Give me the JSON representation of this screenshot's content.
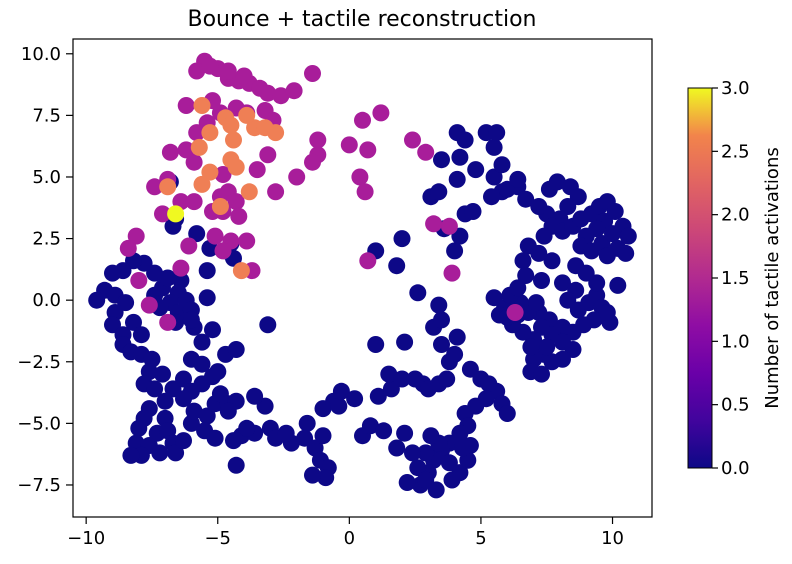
{
  "chart_data": {
    "type": "scatter",
    "title": "Bounce + tactile reconstruction",
    "xlim": [
      -10.5,
      11.5
    ],
    "ylim": [
      -8.8,
      10.6
    ],
    "xticks": [
      -10,
      -5,
      0,
      5,
      10
    ],
    "yticks": [
      -7.5,
      -5.0,
      -2.5,
      0.0,
      2.5,
      5.0,
      7.5,
      10.0
    ],
    "xtick_labels": [
      "−10",
      "−5",
      "0",
      "5",
      "10"
    ],
    "ytick_labels": [
      "−7.5",
      "−5.0",
      "−2.5",
      "0.0",
      "2.5",
      "5.0",
      "7.5",
      "10.0"
    ],
    "colorbar": {
      "label": "Number of tactile activations",
      "colormap": "plasma",
      "range": [
        0,
        3
      ],
      "ticks": [
        "0.0",
        "0.5",
        "1.0",
        "1.5",
        "2.0",
        "2.5",
        "3.0"
      ]
    },
    "points_value_3": [
      [
        -6.6,
        3.5
      ]
    ],
    "points_value_2": [
      [
        -6.9,
        4.6
      ],
      [
        -5.6,
        7.9
      ],
      [
        -5.7,
        6.2
      ],
      [
        -5.3,
        5.2
      ],
      [
        -5.6,
        4.7
      ],
      [
        -4.7,
        7.4
      ],
      [
        -4.4,
        6.5
      ],
      [
        -4.5,
        5.7
      ],
      [
        -4.3,
        5.4
      ],
      [
        -3.8,
        4.4
      ],
      [
        -3.6,
        7.0
      ],
      [
        -3.2,
        7.0
      ],
      [
        -2.8,
        6.8
      ],
      [
        -4.9,
        3.8
      ],
      [
        -4.1,
        1.2
      ],
      [
        -5.3,
        6.8
      ],
      [
        -3.9,
        7.5
      ],
      [
        -4.5,
        7.1
      ]
    ],
    "points_value_1": [
      [
        -5.5,
        9.7
      ],
      [
        -5.8,
        9.3
      ],
      [
        -5.0,
        9.4
      ],
      [
        -4.6,
        9.0
      ],
      [
        -4.2,
        8.9
      ],
      [
        -3.8,
        8.8
      ],
      [
        -3.4,
        8.6
      ],
      [
        -3.1,
        8.4
      ],
      [
        -2.6,
        8.3
      ],
      [
        -2.1,
        8.5
      ],
      [
        -1.4,
        9.2
      ],
      [
        -5.2,
        8.1
      ],
      [
        -4.9,
        7.6
      ],
      [
        -4.3,
        7.8
      ],
      [
        -3.9,
        7.6
      ],
      [
        -3.2,
        7.7
      ],
      [
        -2.9,
        7.3
      ],
      [
        -6.2,
        7.9
      ],
      [
        -5.4,
        7.2
      ],
      [
        -5.8,
        6.8
      ],
      [
        -6.8,
        6.0
      ],
      [
        -6.2,
        6.1
      ],
      [
        -5.9,
        5.6
      ],
      [
        -4.8,
        5.1
      ],
      [
        -4.6,
        4.4
      ],
      [
        -4.9,
        4.2
      ],
      [
        -4.3,
        4.0
      ],
      [
        -3.5,
        5.3
      ],
      [
        -3.1,
        5.9
      ],
      [
        -2.8,
        4.4
      ],
      [
        -2.0,
        5.0
      ],
      [
        -1.2,
        5.9
      ],
      [
        -1.4,
        5.6
      ],
      [
        -1.2,
        6.5
      ],
      [
        0.0,
        6.3
      ],
      [
        0.5,
        7.3
      ],
      [
        0.7,
        6.1
      ],
      [
        1.2,
        7.6
      ],
      [
        0.4,
        5.0
      ],
      [
        0.6,
        4.4
      ],
      [
        2.4,
        6.5
      ],
      [
        2.9,
        6.0
      ],
      [
        -6.9,
        4.9
      ],
      [
        -7.4,
        4.6
      ],
      [
        -6.4,
        4.0
      ],
      [
        -5.9,
        4.0
      ],
      [
        -7.1,
        3.5
      ],
      [
        -5.2,
        3.6
      ],
      [
        -4.8,
        3.6
      ],
      [
        -4.2,
        3.4
      ],
      [
        -5.1,
        2.6
      ],
      [
        -4.5,
        2.4
      ],
      [
        -4.8,
        2.0
      ],
      [
        -3.9,
        2.4
      ],
      [
        -8.1,
        2.6
      ],
      [
        -8.4,
        2.1
      ],
      [
        -6.1,
        2.2
      ],
      [
        -6.4,
        1.3
      ],
      [
        -8.0,
        0.8
      ],
      [
        -7.6,
        -0.2
      ],
      [
        -6.9,
        -0.9
      ],
      [
        -3.7,
        1.2
      ],
      [
        0.7,
        1.6
      ],
      [
        3.2,
        3.1
      ],
      [
        3.8,
        3.0
      ],
      [
        3.9,
        1.1
      ],
      [
        6.3,
        -0.5
      ],
      [
        -4.6,
        9.3
      ],
      [
        -5.3,
        9.5
      ],
      [
        -4.0,
        9.1
      ]
    ],
    "points_value_0": [
      [
        -6.8,
        4.8
      ],
      [
        -6.6,
        3.3
      ],
      [
        -6.7,
        3.0
      ],
      [
        -5.8,
        2.7
      ],
      [
        -5.3,
        2.1
      ],
      [
        -4.5,
        2.3
      ],
      [
        -4.7,
        2.0
      ],
      [
        -4.4,
        1.7
      ],
      [
        -5.4,
        1.2
      ],
      [
        -6.4,
        0.8
      ],
      [
        -6.5,
        0.3
      ],
      [
        -6.8,
        -0.1
      ],
      [
        -6.5,
        -0.5
      ],
      [
        -6.6,
        -0.9
      ],
      [
        -7.2,
        -0.3
      ],
      [
        -7.4,
        0.2
      ],
      [
        -7.1,
        0.5
      ],
      [
        -6.9,
        0.9
      ],
      [
        -7.4,
        1.1
      ],
      [
        -7.8,
        1.5
      ],
      [
        -8.2,
        1.6
      ],
      [
        -8.6,
        1.2
      ],
      [
        -9.0,
        1.1
      ],
      [
        -9.3,
        0.4
      ],
      [
        -9.6,
        0.0
      ],
      [
        -8.9,
        0.2
      ],
      [
        -8.5,
        -0.1
      ],
      [
        -8.9,
        -0.5
      ],
      [
        -9.0,
        -1.0
      ],
      [
        -8.6,
        -1.4
      ],
      [
        -8.2,
        -0.9
      ],
      [
        -7.9,
        -1.4
      ],
      [
        -8.6,
        -1.8
      ],
      [
        -8.3,
        -2.1
      ],
      [
        -7.9,
        -2.2
      ],
      [
        -7.5,
        -2.4
      ],
      [
        -7.6,
        -2.9
      ],
      [
        -7.8,
        -3.4
      ],
      [
        -7.4,
        -3.6
      ],
      [
        -7.1,
        -3.0
      ],
      [
        -6.7,
        -3.6
      ],
      [
        -6.3,
        -3.2
      ],
      [
        -6.0,
        -3.7
      ],
      [
        -6.3,
        -4.0
      ],
      [
        -7.0,
        -4.1
      ],
      [
        -7.6,
        -4.4
      ],
      [
        -7.8,
        -4.8
      ],
      [
        -8.0,
        -5.2
      ],
      [
        -8.1,
        -5.8
      ],
      [
        -7.6,
        -5.9
      ],
      [
        -7.3,
        -5.4
      ],
      [
        -7.0,
        -4.8
      ],
      [
        -6.9,
        -5.3
      ],
      [
        -6.7,
        -5.8
      ],
      [
        -6.6,
        -6.2
      ],
      [
        -7.2,
        -6.2
      ],
      [
        -7.9,
        -6.3
      ],
      [
        -8.3,
        -6.3
      ],
      [
        -6.3,
        -5.7
      ],
      [
        -6.0,
        -5.0
      ],
      [
        -5.9,
        -4.5
      ],
      [
        -5.4,
        -4.7
      ],
      [
        -5.1,
        -4.2
      ],
      [
        -5.6,
        -3.4
      ],
      [
        -5.2,
        -3.1
      ],
      [
        -4.9,
        -3.8
      ],
      [
        -4.6,
        -4.2
      ],
      [
        -4.3,
        -4.1
      ],
      [
        -4.6,
        -4.5
      ],
      [
        -5.5,
        -5.3
      ],
      [
        -5.1,
        -5.6
      ],
      [
        -4.4,
        -5.7
      ],
      [
        -4.1,
        -5.5
      ],
      [
        -4.3,
        -6.7
      ],
      [
        -3.6,
        -5.4
      ],
      [
        -3.0,
        -5.2
      ],
      [
        -2.8,
        -5.6
      ],
      [
        -2.2,
        -5.8
      ],
      [
        -1.6,
        -5.0
      ],
      [
        -1.7,
        -5.6
      ],
      [
        -1.3,
        -6.0
      ],
      [
        -1.1,
        -6.5
      ],
      [
        -0.8,
        -6.8
      ],
      [
        -0.9,
        -7.2
      ],
      [
        -1.4,
        -7.1
      ],
      [
        -1.0,
        -5.5
      ],
      [
        -1.0,
        -4.4
      ],
      [
        -0.6,
        -4.1
      ],
      [
        -0.4,
        -4.3
      ],
      [
        0.5,
        -5.5
      ],
      [
        0.8,
        -5.1
      ],
      [
        1.3,
        -5.3
      ],
      [
        1.1,
        -3.9
      ],
      [
        1.6,
        -3.6
      ],
      [
        1.5,
        -3.0
      ],
      [
        2.0,
        -3.2
      ],
      [
        2.5,
        -3.2
      ],
      [
        2.8,
        -3.4
      ],
      [
        3.0,
        -3.6
      ],
      [
        3.4,
        -3.4
      ],
      [
        3.7,
        -3.2
      ],
      [
        3.8,
        -2.5
      ],
      [
        4.0,
        -2.2
      ],
      [
        3.5,
        -1.8
      ],
      [
        4.1,
        -1.5
      ],
      [
        4.6,
        -2.8
      ],
      [
        5.0,
        -3.2
      ],
      [
        5.3,
        -3.4
      ],
      [
        5.6,
        -3.7
      ],
      [
        5.8,
        -4.2
      ],
      [
        6.0,
        -4.6
      ],
      [
        5.2,
        -4.0
      ],
      [
        4.8,
        -4.3
      ],
      [
        4.4,
        -4.6
      ],
      [
        4.5,
        -5.1
      ],
      [
        4.2,
        -5.4
      ],
      [
        3.8,
        -5.8
      ],
      [
        3.5,
        -6.1
      ],
      [
        3.2,
        -6.5
      ],
      [
        3.0,
        -7.0
      ],
      [
        2.7,
        -7.5
      ],
      [
        2.2,
        -7.4
      ],
      [
        2.6,
        -6.8
      ],
      [
        2.9,
        -6.2
      ],
      [
        3.4,
        -5.8
      ],
      [
        3.8,
        -6.6
      ],
      [
        4.2,
        -7.0
      ],
      [
        4.5,
        -6.5
      ],
      [
        4.6,
        -5.9
      ],
      [
        4.3,
        -6.0
      ],
      [
        3.9,
        -7.3
      ],
      [
        3.3,
        -7.7
      ],
      [
        2.9,
        -7.3
      ],
      [
        2.4,
        -6.2
      ],
      [
        3.1,
        -5.5
      ],
      [
        2.1,
        -5.4
      ],
      [
        1.8,
        -6.0
      ],
      [
        0.2,
        -4.0
      ],
      [
        -0.3,
        -3.7
      ],
      [
        -2.4,
        -5.4
      ],
      [
        -3.2,
        -4.3
      ],
      [
        -3.6,
        -3.9
      ],
      [
        -3.9,
        -5.2
      ],
      [
        -5.0,
        -2.9
      ],
      [
        -5.6,
        -2.6
      ],
      [
        -6.0,
        -2.4
      ],
      [
        -5.6,
        -1.7
      ],
      [
        -5.2,
        -1.2
      ],
      [
        -5.9,
        -1.1
      ],
      [
        -4.7,
        -2.2
      ],
      [
        -4.3,
        -2.0
      ],
      [
        -5.4,
        0.1
      ],
      [
        -6.2,
        0.0
      ],
      [
        -6.0,
        -0.4
      ],
      [
        -6.0,
        -0.8
      ],
      [
        -3.1,
        -1.0
      ],
      [
        1.0,
        -1.8
      ],
      [
        2.1,
        -1.7
      ],
      [
        3.2,
        -1.1
      ],
      [
        3.5,
        -0.8
      ],
      [
        3.4,
        -0.2
      ],
      [
        2.6,
        0.3
      ],
      [
        1.8,
        1.4
      ],
      [
        2.0,
        2.5
      ],
      [
        1.0,
        2.0
      ],
      [
        3.6,
        2.9
      ],
      [
        4.0,
        2.0
      ],
      [
        4.2,
        2.6
      ],
      [
        4.4,
        3.5
      ],
      [
        4.7,
        3.6
      ],
      [
        3.1,
        4.2
      ],
      [
        3.4,
        4.4
      ],
      [
        3.5,
        5.7
      ],
      [
        4.2,
        5.8
      ],
      [
        4.1,
        4.9
      ],
      [
        4.8,
        5.3
      ],
      [
        5.5,
        5.0
      ],
      [
        5.8,
        4.4
      ],
      [
        5.4,
        4.2
      ],
      [
        6.0,
        4.5
      ],
      [
        6.4,
        4.6
      ],
      [
        6.7,
        4.1
      ],
      [
        4.1,
        6.8
      ],
      [
        4.4,
        6.5
      ],
      [
        5.2,
        6.8
      ],
      [
        5.5,
        6.2
      ],
      [
        5.8,
        5.5
      ],
      [
        7.6,
        4.5
      ],
      [
        7.9,
        4.8
      ],
      [
        8.4,
        4.6
      ],
      [
        8.7,
        4.2
      ],
      [
        8.3,
        3.8
      ],
      [
        8.0,
        3.3
      ],
      [
        7.5,
        3.5
      ],
      [
        7.7,
        3.0
      ],
      [
        7.4,
        2.6
      ],
      [
        8.1,
        2.8
      ],
      [
        8.5,
        3.0
      ],
      [
        8.8,
        3.3
      ],
      [
        9.2,
        3.5
      ],
      [
        9.5,
        3.8
      ],
      [
        9.8,
        4.0
      ],
      [
        10.1,
        3.6
      ],
      [
        9.7,
        3.2
      ],
      [
        9.4,
        2.9
      ],
      [
        9.0,
        2.6
      ],
      [
        8.8,
        2.2
      ],
      [
        9.2,
        2.0
      ],
      [
        9.6,
        2.3
      ],
      [
        10.0,
        2.7
      ],
      [
        10.4,
        3.0
      ],
      [
        10.6,
        2.6
      ],
      [
        10.2,
        2.1
      ],
      [
        9.8,
        1.8
      ],
      [
        10.5,
        1.9
      ],
      [
        7.7,
        1.6
      ],
      [
        7.2,
        1.9
      ],
      [
        6.8,
        2.2
      ],
      [
        6.6,
        1.6
      ],
      [
        6.7,
        1.0
      ],
      [
        7.3,
        0.8
      ],
      [
        8.1,
        0.7
      ],
      [
        8.6,
        0.4
      ],
      [
        8.3,
        0.0
      ],
      [
        8.7,
        -0.4
      ],
      [
        9.1,
        -0.1
      ],
      [
        9.4,
        0.2
      ],
      [
        9.6,
        -0.3
      ],
      [
        9.3,
        -0.8
      ],
      [
        8.9,
        -1.0
      ],
      [
        8.5,
        -1.3
      ],
      [
        8.1,
        -1.1
      ],
      [
        7.6,
        -0.8
      ],
      [
        7.2,
        -0.5
      ],
      [
        7.3,
        -1.1
      ],
      [
        7.7,
        -1.4
      ],
      [
        8.1,
        -1.7
      ],
      [
        8.5,
        -2.0
      ],
      [
        8.1,
        -2.4
      ],
      [
        7.7,
        -2.5
      ],
      [
        7.4,
        -2.2
      ],
      [
        7.0,
        -2.4
      ],
      [
        6.9,
        -2.9
      ],
      [
        7.3,
        -3.0
      ],
      [
        7.5,
        -1.9
      ],
      [
        7.0,
        -1.6
      ],
      [
        6.6,
        -1.3
      ],
      [
        6.2,
        -1.0
      ],
      [
        6.4,
        -0.6
      ],
      [
        6.8,
        -0.5
      ],
      [
        7.1,
        -0.1
      ],
      [
        6.5,
        -0.1
      ],
      [
        5.9,
        -0.3
      ],
      [
        5.5,
        0.1
      ],
      [
        6.1,
        0.2
      ],
      [
        6.4,
        0.5
      ],
      [
        9.0,
        1.1
      ],
      [
        8.6,
        1.4
      ],
      [
        9.4,
        0.7
      ],
      [
        9.9,
        -0.9
      ],
      [
        9.8,
        -0.5
      ],
      [
        10.2,
        0.6
      ],
      [
        5.7,
        -0.6
      ],
      [
        6.0,
        -0.7
      ],
      [
        6.9,
        -1.9
      ],
      [
        5.6,
        6.8
      ],
      [
        6.4,
        4.9
      ],
      [
        7.2,
        3.8
      ]
    ]
  }
}
